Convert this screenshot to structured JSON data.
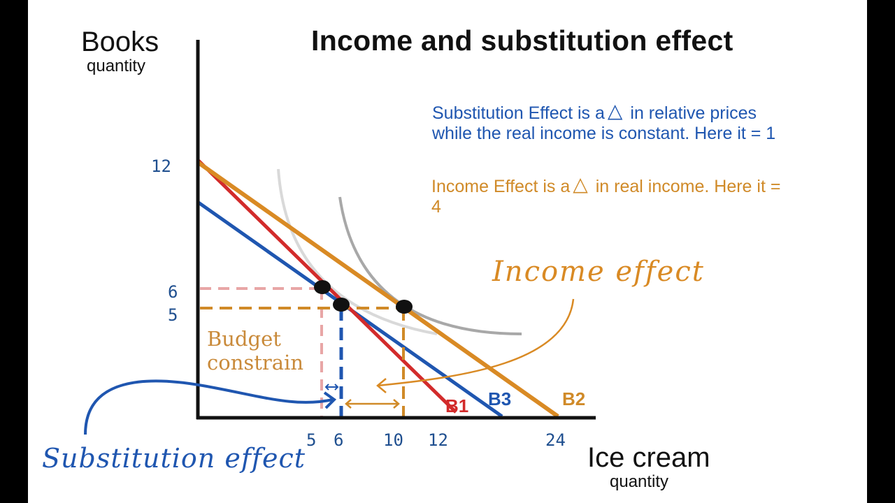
{
  "title": "Income and substitution effect",
  "axes": {
    "y_label": "Books",
    "y_sub": "quantity",
    "x_label": "Ice cream",
    "x_sub": "quantity",
    "y_ticks": [
      "12",
      "6",
      "5"
    ],
    "x_ticks": [
      "5",
      "6",
      "10",
      "12",
      "24"
    ]
  },
  "notes": {
    "substitution_part1": "Substitution Effect is a",
    "substitution_part2": "in relative prices while the real income is constant. Here it = 1",
    "income_part1": "Income Effect is a",
    "income_part2": "in real income. Here it = 4",
    "delta_symbol": "△"
  },
  "annotations": {
    "budget": "Budget constrain",
    "income_effect": "Income effect",
    "substitution_effect": "Substitution effect"
  },
  "lines": {
    "b1": "B1",
    "b2": "B2",
    "b3": "B3"
  },
  "colors": {
    "b1": "#d22b2b",
    "b2": "#d98a24",
    "b3": "#1f56b0",
    "pink_guides": "#e8a6a6",
    "indifference_light": "#d9d9d9",
    "indifference_dark": "#a8a8a8"
  }
}
